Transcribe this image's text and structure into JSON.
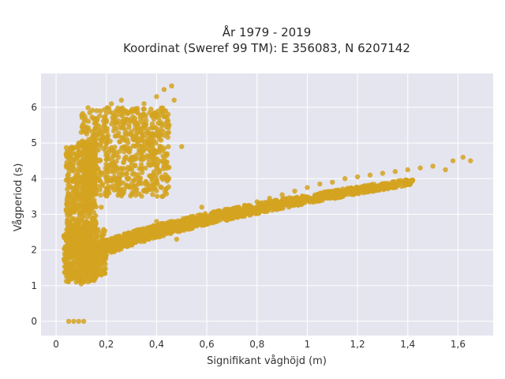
{
  "chart_data": {
    "type": "scatter",
    "title": "År 1979 - 2019",
    "subtitle": "Koordinat (Sweref 99 TM): E 356083, N 6207142",
    "xlabel": "Signifikant våghöjd (m)",
    "ylabel": "Vågperiod (s)",
    "xlim": [
      -0.06,
      1.74
    ],
    "ylim": [
      -0.4,
      6.95
    ],
    "x_ticks": [
      0,
      0.2,
      0.4,
      0.6,
      0.8,
      1.0,
      1.2,
      1.4,
      1.6
    ],
    "x_tick_labels": [
      "0",
      "0,2",
      "0,4",
      "0,6",
      "0,8",
      "1",
      "1,2",
      "1,4",
      "1,6"
    ],
    "y_ticks": [
      0,
      1,
      2,
      3,
      4,
      5,
      6
    ],
    "y_tick_labels": [
      "0",
      "1",
      "2",
      "3",
      "4",
      "5",
      "6"
    ],
    "grid": true,
    "background_color": "#e5e5ef",
    "marker_color": "#d4a320",
    "points": [
      {
        "x": 0.05,
        "y": 0.0
      },
      {
        "x": 0.07,
        "y": 0.0
      },
      {
        "x": 0.09,
        "y": 0.0
      },
      {
        "x": 0.11,
        "y": 0.0
      },
      {
        "x": 0.04,
        "y": 1.5
      },
      {
        "x": 0.06,
        "y": 1.3
      },
      {
        "x": 0.08,
        "y": 1.1
      },
      {
        "x": 0.1,
        "y": 1.05
      },
      {
        "x": 0.06,
        "y": 2.0
      },
      {
        "x": 0.07,
        "y": 2.6
      },
      {
        "x": 0.08,
        "y": 3.3
      },
      {
        "x": 0.07,
        "y": 4.0
      },
      {
        "x": 0.08,
        "y": 4.6
      },
      {
        "x": 0.09,
        "y": 5.0
      },
      {
        "x": 0.1,
        "y": 5.3
      },
      {
        "x": 0.12,
        "y": 4.4
      },
      {
        "x": 0.15,
        "y": 5.2
      },
      {
        "x": 0.2,
        "y": 5.6
      },
      {
        "x": 0.25,
        "y": 5.8
      },
      {
        "x": 0.22,
        "y": 6.1
      },
      {
        "x": 0.26,
        "y": 6.2
      },
      {
        "x": 0.3,
        "y": 5.9
      },
      {
        "x": 0.35,
        "y": 6.1
      },
      {
        "x": 0.4,
        "y": 6.3
      },
      {
        "x": 0.43,
        "y": 6.5
      },
      {
        "x": 0.46,
        "y": 6.6
      },
      {
        "x": 0.47,
        "y": 6.2
      },
      {
        "x": 0.5,
        "y": 4.9
      },
      {
        "x": 0.45,
        "y": 5.5
      },
      {
        "x": 0.38,
        "y": 5.0
      },
      {
        "x": 0.3,
        "y": 4.6
      },
      {
        "x": 0.25,
        "y": 4.0
      },
      {
        "x": 0.2,
        "y": 3.6
      },
      {
        "x": 0.18,
        "y": 3.2
      },
      {
        "x": 0.15,
        "y": 2.9
      },
      {
        "x": 0.15,
        "y": 1.7
      },
      {
        "x": 0.2,
        "y": 1.85
      },
      {
        "x": 0.25,
        "y": 2.0
      },
      {
        "x": 0.3,
        "y": 2.15
      },
      {
        "x": 0.35,
        "y": 2.3
      },
      {
        "x": 0.4,
        "y": 2.45
      },
      {
        "x": 0.45,
        "y": 2.55
      },
      {
        "x": 0.5,
        "y": 2.65
      },
      {
        "x": 0.55,
        "y": 2.8
      },
      {
        "x": 0.6,
        "y": 2.9
      },
      {
        "x": 0.65,
        "y": 3.05
      },
      {
        "x": 0.7,
        "y": 3.15
      },
      {
        "x": 0.75,
        "y": 3.25
      },
      {
        "x": 0.8,
        "y": 3.35
      },
      {
        "x": 0.85,
        "y": 3.45
      },
      {
        "x": 0.9,
        "y": 3.55
      },
      {
        "x": 0.95,
        "y": 3.65
      },
      {
        "x": 1.0,
        "y": 3.75
      },
      {
        "x": 1.05,
        "y": 3.85
      },
      {
        "x": 1.1,
        "y": 3.9
      },
      {
        "x": 1.15,
        "y": 4.0
      },
      {
        "x": 1.2,
        "y": 4.05
      },
      {
        "x": 1.25,
        "y": 4.1
      },
      {
        "x": 1.3,
        "y": 4.15
      },
      {
        "x": 1.35,
        "y": 4.2
      },
      {
        "x": 1.4,
        "y": 4.25
      },
      {
        "x": 1.45,
        "y": 4.3
      },
      {
        "x": 1.5,
        "y": 4.35
      },
      {
        "x": 1.55,
        "y": 4.25
      },
      {
        "x": 1.58,
        "y": 4.5
      },
      {
        "x": 1.62,
        "y": 4.6
      },
      {
        "x": 1.65,
        "y": 4.5
      },
      {
        "x": 0.4,
        "y": 2.8
      },
      {
        "x": 0.48,
        "y": 2.3
      },
      {
        "x": 0.58,
        "y": 3.2
      },
      {
        "x": 0.68,
        "y": 2.85
      }
    ]
  }
}
